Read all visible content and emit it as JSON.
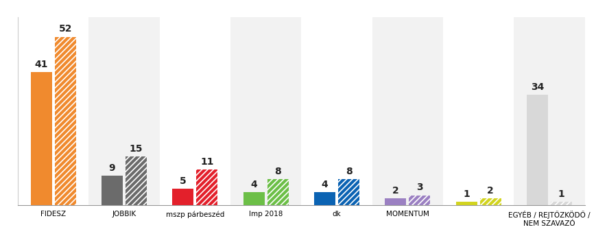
{
  "chart_data": {
    "type": "bar",
    "categories": [
      "FIDESZ",
      "JOBBIK",
      "mszp párbeszéd",
      "lmp 2018",
      "dk",
      "MOMENTUM",
      null,
      "EGYÉB / REJTŐZKÖDŐ / NEM SZAVAZÓ"
    ],
    "colors": [
      "#f08a2e",
      "#6b6b6b",
      "#e3202b",
      "#6cbf47",
      "#0b63b3",
      "#9b80c2",
      "#d2d41f",
      "#d8d8d8"
    ],
    "series": [
      {
        "values": [
          41,
          9,
          5,
          4,
          4,
          2,
          1,
          34
        ]
      },
      {
        "values": [
          52,
          15,
          11,
          8,
          8,
          3,
          2,
          1
        ]
      }
    ],
    "ylim": [
      0,
      58
    ],
    "data_labels": true,
    "tick_labels": "x",
    "grid": false
  }
}
